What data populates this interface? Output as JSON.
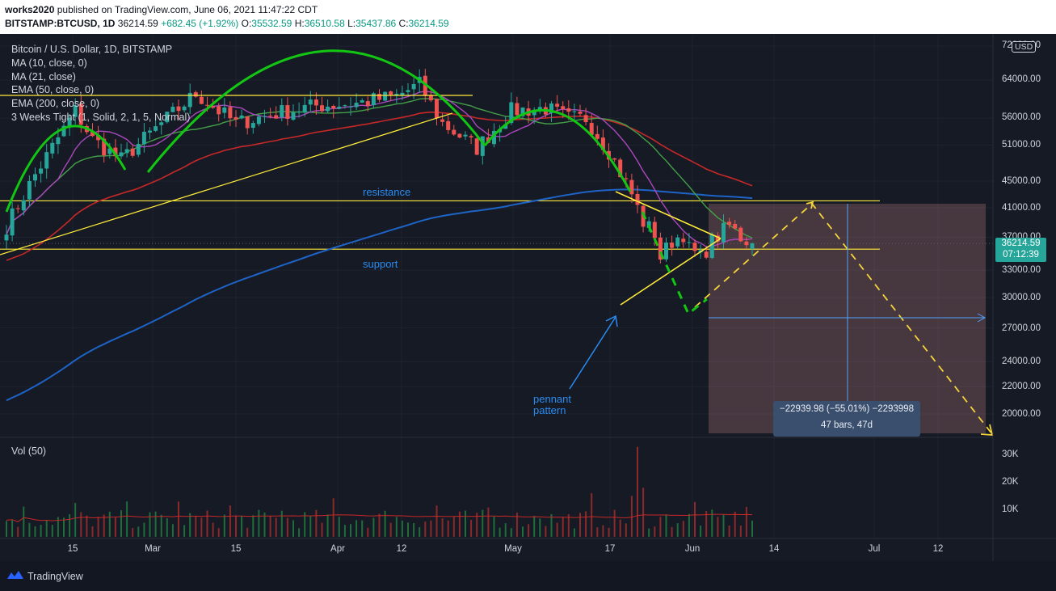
{
  "header": {
    "author": "works2020",
    "published": "published on TradingView.com, June 06, 2021 11:47:22 CDT",
    "symbol": "BITSTAMP:BTCUSD, 1D",
    "last": "36214.59",
    "change": "+682.45 (+1.92%)",
    "open_label": "O:",
    "open": "35532.59",
    "high_label": "H:",
    "high": "36510.58",
    "low_label": "L:",
    "low": "35437.86",
    "close_label": "C:",
    "close": "36214.59"
  },
  "legend": [
    "Bitcoin / U.S. Dollar, 1D, BITSTAMP",
    "MA (10, close, 0)",
    "MA (21, close)",
    "EMA (50, close, 0)",
    "EMA (200, close, 0)",
    "3 Weeks Tight (1, Solid, 2, 1, 5, Normal)"
  ],
  "annotations": {
    "resistance": "resistance",
    "support": "support",
    "pennant_line1": "pennant",
    "pennant_line2": "pattern"
  },
  "price_axis": {
    "currency_badge": "USD",
    "ticks": [
      "72000.00",
      "64000.00",
      "56000.00",
      "51000.00",
      "45000.00",
      "41000.00",
      "37000.00",
      "33000.00",
      "30000.00",
      "27000.00",
      "24000.00",
      "22000.00",
      "20000.00"
    ]
  },
  "volume_axis": {
    "label": "Vol (50)",
    "ticks": [
      "30K",
      "20K",
      "10K"
    ]
  },
  "time_axis": {
    "ticks": [
      "15",
      "Mar",
      "15",
      "Apr",
      "12",
      "May",
      "17",
      "Jun",
      "14",
      "Jul",
      "12"
    ]
  },
  "price_tag": {
    "price": "36214.59",
    "countdown": "07:12:39"
  },
  "measure": {
    "line1": "−22939.98 (−55.01%) −2293998",
    "line2": "47 bars, 47d"
  },
  "footer": {
    "brand": "TradingView"
  },
  "colors": {
    "background": "#161a25",
    "up": "#26a69a",
    "down": "#ef5350",
    "ma10": "#ab47bc",
    "ma21": "#43a047",
    "ema50": "#c62828",
    "ema200": "#1e63c6",
    "trend": "#ffeb3b",
    "arc": "#13c613"
  },
  "chart_data": {
    "type": "candlestick",
    "title": "Bitcoin / U.S. Dollar, 1D, BITSTAMP",
    "y_scale": "log",
    "ylim": [
      18500,
      76000
    ],
    "x_dates": [
      "2021-02-06",
      "2021-06-06"
    ],
    "waypoints": [
      [
        0,
        38500
      ],
      [
        5,
        46000
      ],
      [
        12,
        57500
      ],
      [
        15,
        52000
      ],
      [
        20,
        48500
      ],
      [
        26,
        54000
      ],
      [
        33,
        61000
      ],
      [
        40,
        55000
      ],
      [
        47,
        57000
      ],
      [
        54,
        58500
      ],
      [
        61,
        59000
      ],
      [
        68,
        60500
      ],
      [
        72,
        63000
      ],
      [
        76,
        55000
      ],
      [
        82,
        50500
      ],
      [
        88,
        57500
      ],
      [
        94,
        58000
      ],
      [
        98,
        56000
      ],
      [
        101,
        56000
      ],
      [
        105,
        50000
      ],
      [
        109,
        43000
      ],
      [
        111,
        39000
      ],
      [
        113,
        37500
      ],
      [
        114,
        34500
      ],
      [
        116,
        36500
      ],
      [
        118,
        37500
      ],
      [
        119,
        35500
      ],
      [
        121,
        34500
      ],
      [
        123,
        36500
      ],
      [
        126,
        38500
      ],
      [
        128,
        37000
      ],
      [
        130,
        36215
      ]
    ],
    "last_close": 36214.59,
    "resistance": 42000,
    "support": 35500,
    "volume": {
      "ylim": [
        0,
        35000
      ],
      "ma_length": 50
    }
  }
}
